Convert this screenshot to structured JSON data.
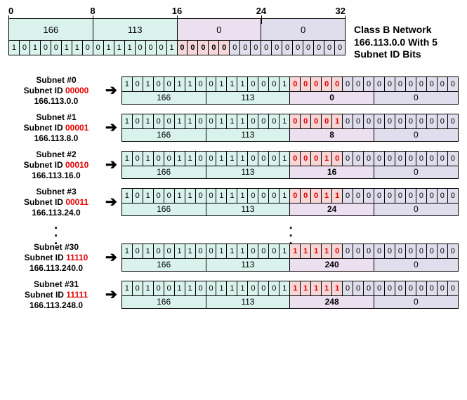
{
  "colors": {
    "oct1_bg": "#d9f2ec",
    "oct2_bg": "#d9f2ec",
    "oct3_bg": "#ece0f0",
    "oct4_bg": "#e0deec",
    "subnet_bg": "#f6d6d6",
    "host_bg": "#e0deec",
    "border": "#000000",
    "subnet_id_text": "#e60000"
  },
  "ruler": {
    "marks": [
      {
        "label": "0",
        "pos_pct": 0
      },
      {
        "label": "8",
        "pos_pct": 25
      },
      {
        "label": "16",
        "pos_pct": 50
      },
      {
        "label": "24",
        "pos_pct": 75
      },
      {
        "label": "32",
        "pos_pct": 100
      }
    ]
  },
  "header": {
    "octets": [
      {
        "label": "166",
        "width_bits": 8,
        "bg_key": "oct1_bg"
      },
      {
        "label": "113",
        "width_bits": 8,
        "bg_key": "oct2_bg"
      },
      {
        "label": "0",
        "width_bits": 8,
        "bg_key": "oct3_bg"
      },
      {
        "label": "0",
        "width_bits": 8,
        "bg_key": "oct4_bg"
      }
    ],
    "bits": "10100110011100010000000000000000",
    "network_bits": 16,
    "subnet_bits": 5,
    "caption": "Class B Network 166.113.0.0 With 5 Subnet ID Bits"
  },
  "subnets": [
    {
      "title": "Subnet #0",
      "subnet_id": "00000",
      "address": "166.113.0.0",
      "bits": "10100110011100010000000000000000",
      "decimals": [
        "166",
        "113",
        "0",
        "0"
      ],
      "third_bold": true
    },
    {
      "title": "Subnet #1",
      "subnet_id": "00001",
      "address": "166.113.8.0",
      "bits": "10100110011100010000100000000000",
      "decimals": [
        "166",
        "113",
        "8",
        "0"
      ],
      "third_bold": true
    },
    {
      "title": "Subnet #2",
      "subnet_id": "00010",
      "address": "166.113.16.0",
      "bits": "10100110011100010001000000000000",
      "decimals": [
        "166",
        "113",
        "16",
        "0"
      ],
      "third_bold": true
    },
    {
      "title": "Subnet #3",
      "subnet_id": "00011",
      "address": "166.113.24.0",
      "bits": "10100110011100010001100000000000",
      "decimals": [
        "166",
        "113",
        "24",
        "0"
      ],
      "third_bold": true
    },
    {
      "ellipsis": true
    },
    {
      "title": "Subnet #30",
      "subnet_id": "11110",
      "address": "166.113.240.0",
      "bits": "10100110011100011111000000000000",
      "decimals": [
        "166",
        "113",
        "240",
        "0"
      ],
      "third_bold": true
    },
    {
      "title": "Subnet #31",
      "subnet_id": "11111",
      "address": "166.113.248.0",
      "bits": "10100110011100011111100000000000",
      "decimals": [
        "166",
        "113",
        "248",
        "0"
      ],
      "third_bold": true
    }
  ]
}
